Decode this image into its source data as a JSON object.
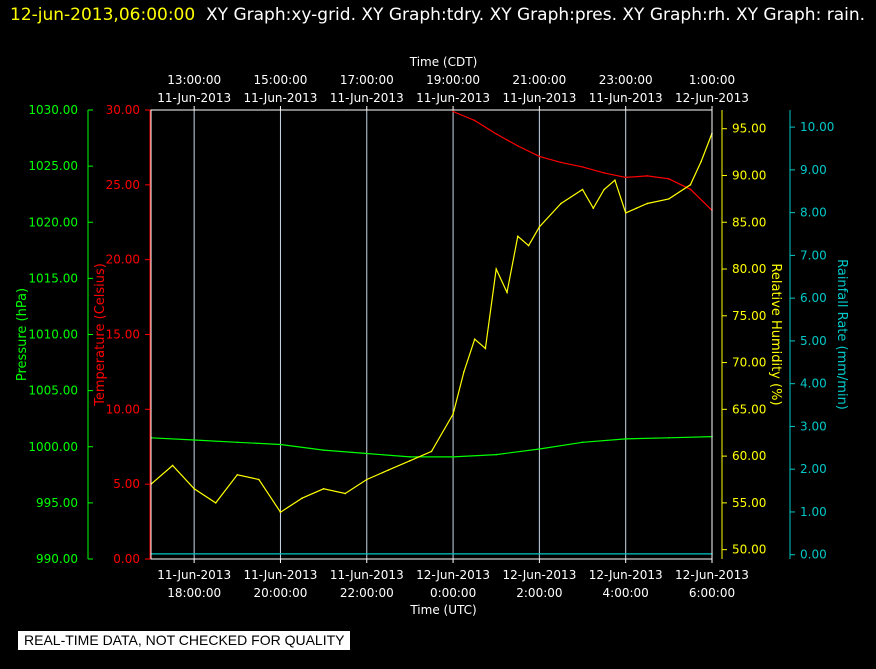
{
  "header": {
    "timestamp": "12-jun-2013,06:00:00",
    "titles": "XY Graph:xy-grid.  XY Graph:tdry.  XY Graph:pres.  XY Graph:rh.  XY Graph: rain."
  },
  "disclaimer": "REAL-TIME DATA, NOT CHECKED FOR QUALITY",
  "colors": {
    "temperature": "#ff0000",
    "pressure": "#00ff00",
    "humidity": "#ffff00",
    "rain": "#00c8c8",
    "frame": "#ffffff",
    "grid": "#c8d8e8"
  },
  "chart_data": {
    "type": "line",
    "x_top_label": "Time (CDT)",
    "x_bottom_label": "Time (UTC)",
    "x_range_utc_hours": [
      17.0,
      6.0
    ],
    "grid": true,
    "x_top_ticks": [
      {
        "time": "13:00:00",
        "date": "11-Jun-2013"
      },
      {
        "time": "15:00:00",
        "date": "11-Jun-2013"
      },
      {
        "time": "17:00:00",
        "date": "11-Jun-2013"
      },
      {
        "time": "19:00:00",
        "date": "11-Jun-2013"
      },
      {
        "time": "21:00:00",
        "date": "11-Jun-2013"
      },
      {
        "time": "23:00:00",
        "date": "11-Jun-2013"
      },
      {
        "time": "1:00:00",
        "date": "12-Jun-2013"
      }
    ],
    "x_bottom_ticks": [
      {
        "date": "11-Jun-2013",
        "time": "18:00:00"
      },
      {
        "date": "11-Jun-2013",
        "time": "20:00:00"
      },
      {
        "date": "11-Jun-2013",
        "time": "22:00:00"
      },
      {
        "date": "12-Jun-2013",
        "time": "0:00:00"
      },
      {
        "date": "12-Jun-2013",
        "time": "2:00:00"
      },
      {
        "date": "12-Jun-2013",
        "time": "4:00:00"
      },
      {
        "date": "12-Jun-2013",
        "time": "6:00:00"
      }
    ],
    "axes": {
      "pressure": {
        "label": "Pressure (hPa)",
        "range": [
          990,
          1030
        ],
        "ticks": [
          "990.00",
          "995.00",
          "1000.00",
          "1005.00",
          "1010.00",
          "1015.00",
          "1020.00",
          "1025.00",
          "1030.00"
        ]
      },
      "temperature": {
        "label": "Temperature (Celsius)",
        "range": [
          0,
          30
        ],
        "ticks": [
          "0.00",
          "5.00",
          "10.00",
          "15.00",
          "20.00",
          "25.00",
          "30.00"
        ]
      },
      "humidity": {
        "label": "Relative Humidity (%)",
        "range": [
          49,
          97
        ],
        "ticks": [
          "50.00",
          "55.00",
          "60.00",
          "65.00",
          "70.00",
          "75.00",
          "80.00",
          "85.00",
          "90.00",
          "95.00"
        ]
      },
      "rain": {
        "label": "Rainfall Rate (mm/min)",
        "range": [
          -0.1,
          10.4
        ],
        "ticks": [
          "0.00",
          "1.00",
          "2.00",
          "3.00",
          "4.00",
          "5.00",
          "6.00",
          "7.00",
          "8.00",
          "9.00",
          "10.00"
        ]
      }
    },
    "series": [
      {
        "name": "tdry",
        "axis": "temperature",
        "x": [
          "12-Jun 0:00",
          "12-Jun 0:30",
          "12-Jun 1:00",
          "12-Jun 1:30",
          "12-Jun 2:00",
          "12-Jun 2:30",
          "12-Jun 3:00",
          "12-Jun 3:30",
          "12-Jun 4:00",
          "12-Jun 4:30",
          "12-Jun 5:00",
          "12-Jun 5:30",
          "12-Jun 6:00"
        ],
        "values": [
          29.9,
          29.3,
          28.4,
          27.6,
          26.9,
          26.5,
          26.2,
          25.8,
          25.5,
          25.6,
          25.4,
          24.7,
          23.3
        ]
      },
      {
        "name": "pres",
        "axis": "pressure",
        "x": [
          "11-Jun 17:00",
          "11-Jun 18:00",
          "11-Jun 19:00",
          "11-Jun 20:00",
          "11-Jun 21:00",
          "11-Jun 22:00",
          "11-Jun 23:00",
          "12-Jun 0:00",
          "12-Jun 1:00",
          "12-Jun 2:00",
          "12-Jun 3:00",
          "12-Jun 4:00",
          "12-Jun 5:00",
          "12-Jun 6:00"
        ],
        "values": [
          1000.8,
          1000.6,
          1000.4,
          1000.2,
          999.7,
          999.4,
          999.1,
          999.1,
          999.3,
          999.8,
          1000.4,
          1000.7,
          1000.8,
          1000.9
        ]
      },
      {
        "name": "rh",
        "axis": "humidity",
        "x": [
          "11-Jun 17:00",
          "11-Jun 17:30",
          "11-Jun 18:00",
          "11-Jun 18:30",
          "11-Jun 19:00",
          "11-Jun 19:30",
          "11-Jun 20:00",
          "11-Jun 20:30",
          "11-Jun 21:00",
          "11-Jun 21:30",
          "11-Jun 22:00",
          "11-Jun 22:30",
          "11-Jun 23:00",
          "11-Jun 23:30",
          "12-Jun 0:00",
          "12-Jun 0:15",
          "12-Jun 0:30",
          "12-Jun 0:45",
          "12-Jun 1:00",
          "12-Jun 1:15",
          "12-Jun 1:30",
          "12-Jun 1:45",
          "12-Jun 2:00",
          "12-Jun 2:30",
          "12-Jun 3:00",
          "12-Jun 3:15",
          "12-Jun 3:30",
          "12-Jun 3:45",
          "12-Jun 4:00",
          "12-Jun 4:15",
          "12-Jun 4:30",
          "12-Jun 5:00",
          "12-Jun 5:30",
          "12-Jun 5:45",
          "12-Jun 6:00"
        ],
        "values": [
          57.0,
          59.0,
          56.5,
          55.0,
          58.0,
          57.5,
          54.0,
          55.5,
          56.5,
          56.0,
          57.5,
          58.5,
          59.5,
          60.5,
          64.5,
          69.0,
          72.5,
          71.5,
          80.0,
          77.5,
          83.5,
          82.5,
          84.5,
          87.0,
          88.5,
          86.5,
          88.5,
          89.5,
          86.0,
          86.5,
          87.0,
          87.5,
          89.0,
          91.5,
          94.5
        ]
      },
      {
        "name": "rain",
        "axis": "rain",
        "x": [
          "11-Jun 17:00",
          "12-Jun 6:00"
        ],
        "values": [
          0.02,
          0.02
        ]
      }
    ]
  }
}
